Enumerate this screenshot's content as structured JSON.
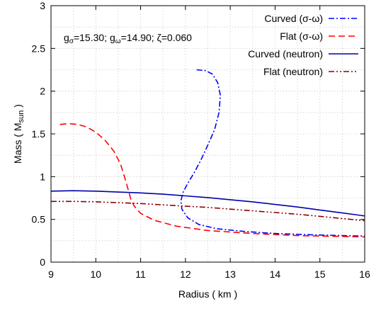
{
  "chart_data": {
    "type": "line",
    "xlabel": "Radius ( km )",
    "ylabel": "Mass ( M",
    "ylabel_sub": "sun",
    "ylabel_close": " )",
    "xlim": [
      9,
      16
    ],
    "ylim": [
      0,
      3
    ],
    "xticks": [
      "9",
      "10",
      "11",
      "12",
      "13",
      "14",
      "15",
      "16"
    ],
    "yticks": [
      "0",
      "0.5",
      "1",
      "1.5",
      "2",
      "2.5",
      "3"
    ],
    "grid": true,
    "legend_position": "top-right",
    "annotation": {
      "g1": "g",
      "g1_sub": "σ",
      "g1_val": "=15.30; ",
      "g2": "g",
      "g2_sub": "ω",
      "g2_val": "=14.90; ζ=0.060"
    },
    "series": [
      {
        "name": "Curved (σ-ω)",
        "color": "#0000ff",
        "dash": "dashdot",
        "x": [
          12.25,
          12.45,
          12.6,
          12.72,
          12.78,
          12.75,
          12.65,
          12.5,
          12.35,
          12.2,
          12.05,
          11.95,
          11.9,
          11.92,
          12.05,
          12.3,
          12.7,
          13.3,
          14.0,
          14.8,
          15.5,
          16.0
        ],
        "y": [
          2.25,
          2.24,
          2.2,
          2.1,
          1.95,
          1.75,
          1.55,
          1.37,
          1.2,
          1.05,
          0.92,
          0.82,
          0.72,
          0.62,
          0.52,
          0.44,
          0.39,
          0.36,
          0.335,
          0.32,
          0.31,
          0.305
        ]
      },
      {
        "name": "Flat (σ-ω)",
        "color": "#ff0000",
        "dash": "dash",
        "x": [
          9.2,
          9.4,
          9.6,
          9.8,
          10.0,
          10.2,
          10.4,
          10.55,
          10.65,
          10.72,
          10.78,
          10.85,
          11.0,
          11.3,
          11.8,
          12.5,
          13.5,
          14.5,
          15.5,
          16.0
        ],
        "y": [
          1.61,
          1.62,
          1.61,
          1.58,
          1.52,
          1.43,
          1.3,
          1.15,
          0.98,
          0.85,
          0.74,
          0.66,
          0.57,
          0.49,
          0.42,
          0.37,
          0.335,
          0.31,
          0.3,
          0.295
        ]
      },
      {
        "name": "Curved (neutron)",
        "color": "#0000aa",
        "dash": "solid",
        "x": [
          9.0,
          9.5,
          10.0,
          10.5,
          11.0,
          11.5,
          12.0,
          12.5,
          13.0,
          13.5,
          14.0,
          14.5,
          15.0,
          15.5,
          16.0
        ],
        "y": [
          0.83,
          0.835,
          0.83,
          0.82,
          0.81,
          0.795,
          0.775,
          0.755,
          0.73,
          0.705,
          0.675,
          0.645,
          0.61,
          0.575,
          0.54
        ]
      },
      {
        "name": "Flat (neutron)",
        "color": "#8b0000",
        "dash": "dashdotdot",
        "x": [
          9.0,
          9.5,
          10.0,
          10.5,
          11.0,
          11.5,
          12.0,
          12.5,
          13.0,
          13.5,
          14.0,
          14.5,
          15.0,
          15.5,
          16.0
        ],
        "y": [
          0.71,
          0.71,
          0.705,
          0.695,
          0.685,
          0.67,
          0.655,
          0.64,
          0.62,
          0.6,
          0.58,
          0.56,
          0.535,
          0.51,
          0.485
        ]
      }
    ]
  }
}
